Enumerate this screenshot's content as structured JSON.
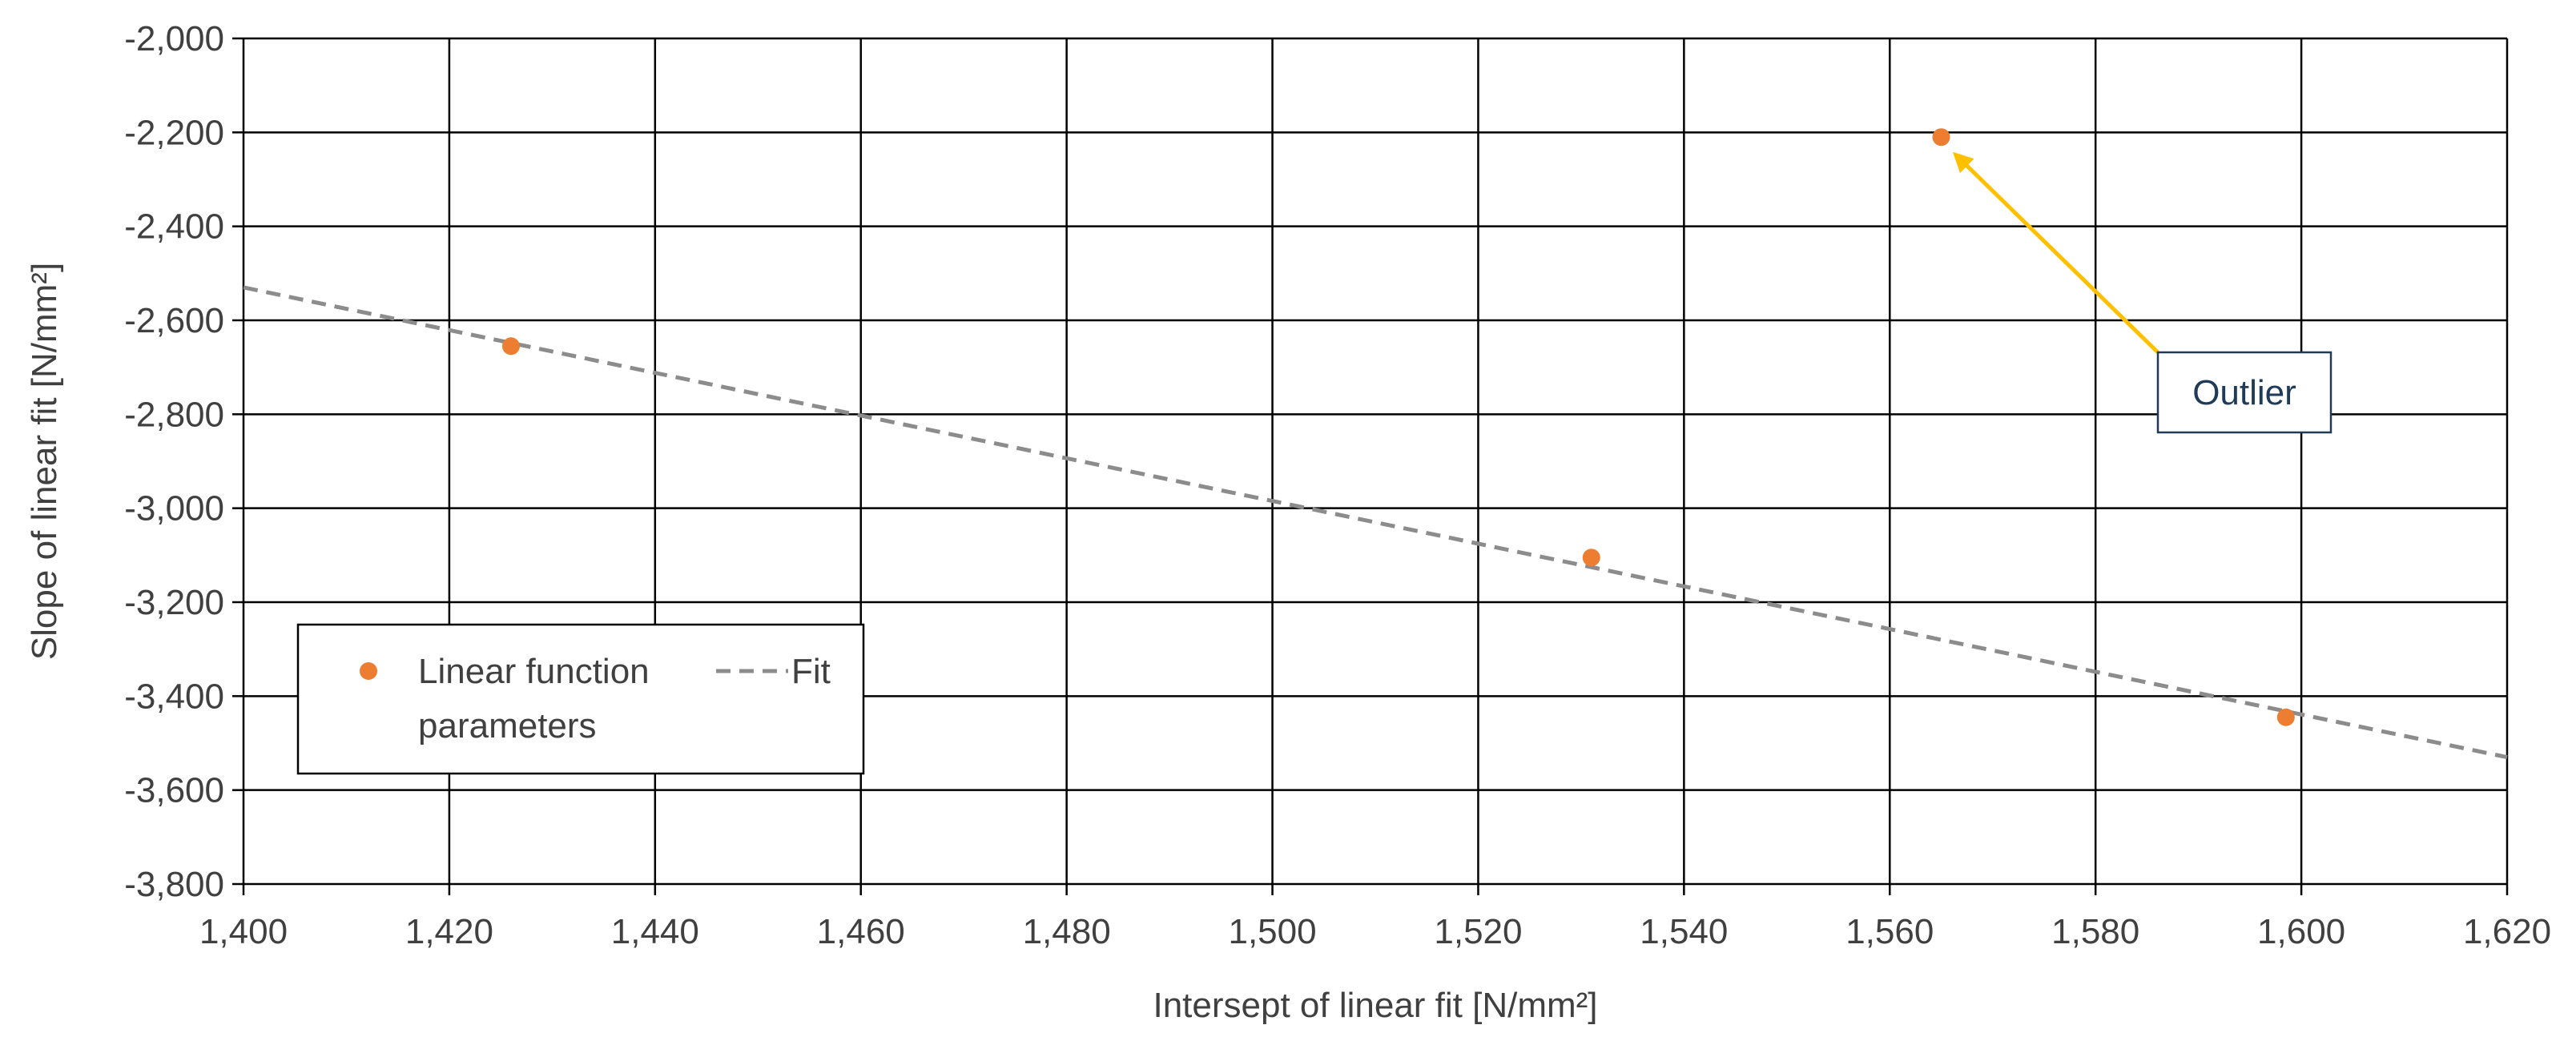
{
  "chart_data": {
    "type": "scatter",
    "xlabel": "Intersept of linear fit   [N/mm²]",
    "ylabel": "Slope of linear fit   [N/mm²]",
    "xlim": [
      1400,
      1620
    ],
    "ylim": [
      -3800,
      -2000
    ],
    "xticks": [
      1400,
      1420,
      1440,
      1460,
      1480,
      1500,
      1520,
      1540,
      1560,
      1580,
      1600,
      1620
    ],
    "yticks": [
      -2000,
      -2200,
      -2400,
      -2600,
      -2800,
      -3000,
      -3200,
      -3400,
      -3600,
      -3800
    ],
    "xtick_labels": [
      "1,400",
      "1,420",
      "1,440",
      "1,460",
      "1,480",
      "1,500",
      "1,520",
      "1,540",
      "1,560",
      "1,580",
      "1,600",
      "1,620"
    ],
    "ytick_labels": [
      "-2,000",
      "-2,200",
      "-2,400",
      "-2,600",
      "-2,800",
      "-3,000",
      "-3,200",
      "-3,400",
      "-3,600",
      "-3,800"
    ],
    "grid": true,
    "legend_placement": "bottom-left",
    "series": [
      {
        "name": "Linear function parameters",
        "kind": "scatter",
        "color": "#ed7d31",
        "points": [
          {
            "x": 1426,
            "y": -2655
          },
          {
            "x": 1531,
            "y": -3105
          },
          {
            "x": 1565,
            "y": -2210
          },
          {
            "x": 1598.5,
            "y": -3445
          }
        ]
      },
      {
        "name": "Fit",
        "kind": "line",
        "style": "dashed",
        "color": "#8c8c8c",
        "points": [
          {
            "x": 1400,
            "y": -2530
          },
          {
            "x": 1620,
            "y": -3530
          }
        ]
      }
    ],
    "legend": {
      "entries": [
        {
          "marker": "circle",
          "lines": [
            "Linear function",
            "parameters"
          ]
        },
        {
          "marker": "dash",
          "lines": [
            "Fit"
          ]
        }
      ]
    },
    "annotations": [
      {
        "text": "Outlier",
        "arrow_color": "#ffc000",
        "points_to": {
          "x": 1565,
          "y": -2210
        }
      }
    ]
  }
}
